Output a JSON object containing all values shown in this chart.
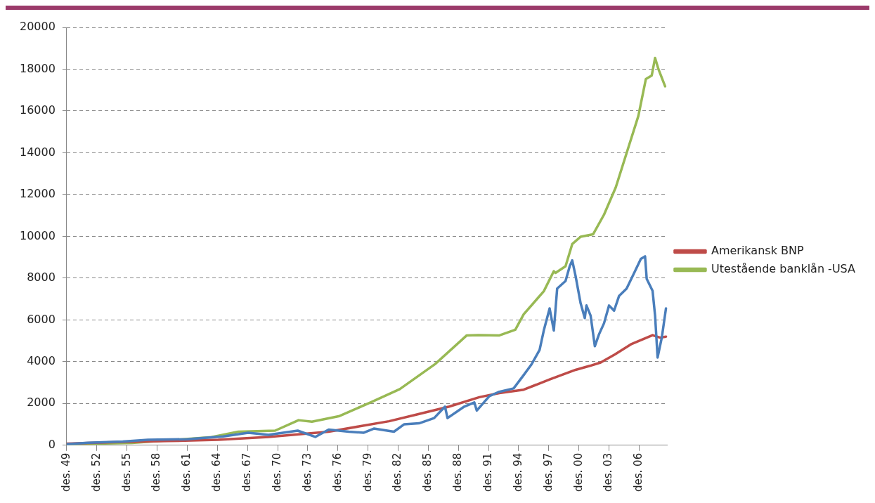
{
  "chart_data": {
    "type": "line",
    "legend": "right",
    "grid": "y",
    "marker": "none",
    "line_style": "solid",
    "xlim": [
      "1949-12",
      "2009-10"
    ],
    "ylim": [
      0,
      20000
    ],
    "yticks": [
      0,
      2000,
      4000,
      6000,
      8000,
      10000,
      12000,
      14000,
      16000,
      18000,
      20000
    ],
    "xticks": [
      {
        "value": "1949-12",
        "label": "des. 49"
      },
      {
        "value": "1952-12",
        "label": "des. 52"
      },
      {
        "value": "1955-12",
        "label": "des. 55"
      },
      {
        "value": "1958-12",
        "label": "des. 58"
      },
      {
        "value": "1961-12",
        "label": "des. 61"
      },
      {
        "value": "1964-12",
        "label": "des. 64"
      },
      {
        "value": "1967-12",
        "label": "des. 67"
      },
      {
        "value": "1970-12",
        "label": "des. 70"
      },
      {
        "value": "1973-12",
        "label": "des. 73"
      },
      {
        "value": "1976-12",
        "label": "des. 76"
      },
      {
        "value": "1979-12",
        "label": "des. 79"
      },
      {
        "value": "1982-12",
        "label": "des. 82"
      },
      {
        "value": "1985-12",
        "label": "des. 85"
      },
      {
        "value": "1988-12",
        "label": "des. 88"
      },
      {
        "value": "1991-12",
        "label": "des. 91"
      },
      {
        "value": "1994-12",
        "label": "des. 94"
      },
      {
        "value": "1997-12",
        "label": "des. 97"
      },
      {
        "value": "2000-12",
        "label": "des. 00"
      },
      {
        "value": "2003-12",
        "label": "des. 03"
      },
      {
        "value": "2006-12",
        "label": "des. 06"
      }
    ],
    "series": [
      {
        "color": "#4a7ebb",
        "x": [
          "1949-12",
          "1952-01",
          "1955-07",
          "1958-01",
          "1961-12",
          "1963-01",
          "1965-07",
          "1968-01",
          "1970-01",
          "1972-12",
          "1974-09",
          "1976-01",
          "1978-01",
          "1979-07",
          "1980-07",
          "1982-07",
          "1983-07",
          "1985-01",
          "1986-07",
          "1987-08",
          "1987-11",
          "1989-07",
          "1990-07",
          "1990-10",
          "1992-01",
          "1992-12",
          "1994-06",
          "1995-06",
          "1996-03",
          "1997-01",
          "1997-06",
          "1998-01",
          "1998-06",
          "1998-10",
          "1999-08",
          "2000-01",
          "2000-04",
          "2000-08",
          "2001-02",
          "2001-07",
          "2001-09",
          "2002-02",
          "2002-07",
          "2002-12",
          "2003-06",
          "2003-12",
          "2004-06",
          "2004-12",
          "2005-09",
          "2006-07",
          "2007-02",
          "2007-07",
          "2007-09",
          "2008-04",
          "2008-07",
          "2008-10",
          "2009-03",
          "2009-08"
        ],
        "values": [
          50,
          120,
          180,
          260,
          290,
          330,
          420,
          600,
          500,
          700,
          400,
          750,
          650,
          600,
          800,
          650,
          1000,
          1050,
          1300,
          1850,
          1300,
          1850,
          2050,
          1660,
          2350,
          2550,
          2720,
          3360,
          3850,
          4560,
          5490,
          6550,
          5490,
          7500,
          7860,
          8570,
          8850,
          8100,
          6800,
          6090,
          6690,
          6200,
          4740,
          5310,
          5840,
          6690,
          6440,
          7150,
          7500,
          8330,
          8920,
          9040,
          7960,
          7390,
          6200,
          4200,
          5150,
          6550
        ]
      },
      {
        "name": "Amerikansk BNP",
        "color": "#be4b48",
        "x": [
          "1949-12",
          "1955-01",
          "1960-01",
          "1965-01",
          "1970-01",
          "1973-01",
          "1976-01",
          "1979-01",
          "1982-01",
          "1985-01",
          "1988-01",
          "1991-01",
          "1993-01",
          "1995-06",
          "1998-01",
          "2000-08",
          "2002-01",
          "2003-02",
          "2004-07",
          "2006-03",
          "2008-04",
          "2009-01",
          "2009-08"
        ],
        "values": [
          80,
          150,
          200,
          260,
          400,
          520,
          650,
          900,
          1150,
          1500,
          1850,
          2300,
          2500,
          2660,
          3150,
          3610,
          3800,
          3960,
          4350,
          4850,
          5270,
          5150,
          5200
        ]
      },
      {
        "name": "Utestående banklån -USA",
        "color": "#98b954",
        "x": [
          "1949-12",
          "1956-06",
          "1964-05",
          "1967-01",
          "1970-09",
          "1973-01",
          "1974-05",
          "1977-02",
          "1980-03",
          "1983-02",
          "1986-08",
          "1989-10",
          "1990-12",
          "1993-01",
          "1994-08",
          "1995-06",
          "1997-06",
          "1998-06",
          "1998-08",
          "1999-08",
          "2000-04",
          "2001-02",
          "2002-05",
          "2003-06",
          "2004-08",
          "2005-09",
          "2006-11",
          "2007-08",
          "2008-03",
          "2008-07",
          "2008-11",
          "2009-07"
        ],
        "values": [
          50,
          110,
          390,
          650,
          700,
          1200,
          1130,
          1400,
          2050,
          2690,
          3880,
          5260,
          5270,
          5260,
          5530,
          6270,
          7370,
          8330,
          8250,
          8570,
          9630,
          9980,
          10100,
          11040,
          12340,
          13990,
          15760,
          17530,
          17700,
          18540,
          18000,
          17180
        ]
      }
    ]
  }
}
